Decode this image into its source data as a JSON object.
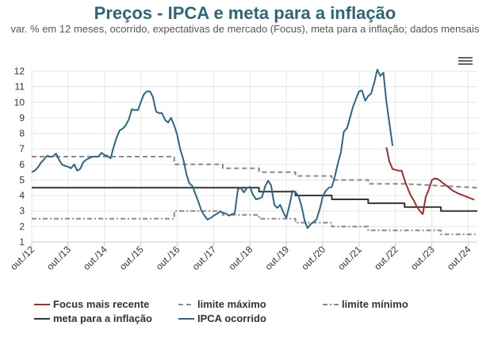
{
  "title": "Preços - IPCA e meta para a inflação",
  "subtitle": "var. % em 12 meses, ocorrido, expectativas de mercado (Focus), meta para a inflação; dados mensais",
  "menu_icon": "hamburger-menu-icon",
  "chart_data": {
    "type": "line",
    "ylim": [
      1,
      12
    ],
    "yticks": [
      "1",
      "2",
      "3",
      "4",
      "5",
      "6",
      "7",
      "8",
      "9",
      "10",
      "11",
      "12"
    ],
    "xlim": [
      2012.75,
      2025.0
    ],
    "xticks": [
      {
        "label": "out./12",
        "x": 2012.75
      },
      {
        "label": "out./13",
        "x": 2013.75
      },
      {
        "label": "out./14",
        "x": 2014.75
      },
      {
        "label": "out./15",
        "x": 2015.75
      },
      {
        "label": "out./16",
        "x": 2016.75
      },
      {
        "label": "out./17",
        "x": 2017.75
      },
      {
        "label": "out./18",
        "x": 2018.75
      },
      {
        "label": "out./19",
        "x": 2019.75
      },
      {
        "label": "out./20",
        "x": 2020.75
      },
      {
        "label": "out./21",
        "x": 2021.75
      },
      {
        "label": "out./22",
        "x": 2022.75
      },
      {
        "label": "out./23",
        "x": 2023.75
      },
      {
        "label": "out./24",
        "x": 2024.75
      }
    ],
    "grid": true,
    "legend_position": "bottom",
    "series": [
      {
        "name": "Focus mais recente",
        "color": "#a03030",
        "style": "solid",
        "points": [
          [
            2022.5,
            7.1
          ],
          [
            2022.58,
            6.2
          ],
          [
            2022.67,
            5.7
          ],
          [
            2022.75,
            5.65
          ],
          [
            2022.83,
            5.6
          ],
          [
            2022.92,
            5.6
          ],
          [
            2023.0,
            5.0
          ],
          [
            2023.08,
            4.5
          ],
          [
            2023.17,
            4.0
          ],
          [
            2023.25,
            3.7
          ],
          [
            2023.33,
            3.3
          ],
          [
            2023.42,
            3.0
          ],
          [
            2023.5,
            2.8
          ],
          [
            2023.58,
            3.9
          ],
          [
            2023.67,
            4.4
          ],
          [
            2023.75,
            5.0
          ],
          [
            2023.83,
            5.1
          ],
          [
            2023.92,
            5.05
          ],
          [
            2024.0,
            4.9
          ],
          [
            2024.17,
            4.6
          ],
          [
            2024.33,
            4.3
          ],
          [
            2024.5,
            4.1
          ],
          [
            2024.67,
            3.95
          ],
          [
            2024.83,
            3.8
          ],
          [
            2024.92,
            3.72
          ]
        ]
      },
      {
        "name": "limite máximo",
        "color": "#888888",
        "style": "dashed",
        "points": [
          [
            2012.75,
            6.5
          ],
          [
            2016.67,
            6.5
          ],
          [
            2016.67,
            6.0
          ],
          [
            2018.0,
            6.0
          ],
          [
            2018.0,
            5.75
          ],
          [
            2019.0,
            5.75
          ],
          [
            2019.0,
            5.5
          ],
          [
            2020.0,
            5.5
          ],
          [
            2020.0,
            5.25
          ],
          [
            2021.0,
            5.25
          ],
          [
            2021.0,
            5.0
          ],
          [
            2022.0,
            5.0
          ],
          [
            2022.0,
            4.75
          ],
          [
            2023.0,
            4.75
          ],
          [
            2023.0,
            4.75
          ],
          [
            2025.0,
            4.5
          ]
        ]
      },
      {
        "name": "limite mínimo",
        "color": "#888888",
        "style": "dashdot",
        "points": [
          [
            2012.75,
            2.5
          ],
          [
            2016.67,
            2.5
          ],
          [
            2016.67,
            3.0
          ],
          [
            2018.0,
            3.0
          ],
          [
            2018.0,
            2.75
          ],
          [
            2019.0,
            2.75
          ],
          [
            2019.0,
            2.5
          ],
          [
            2020.0,
            2.5
          ],
          [
            2020.0,
            2.25
          ],
          [
            2021.0,
            2.25
          ],
          [
            2021.0,
            2.0
          ],
          [
            2022.0,
            2.0
          ],
          [
            2022.0,
            1.75
          ],
          [
            2023.0,
            1.75
          ],
          [
            2023.0,
            1.75
          ],
          [
            2024.0,
            1.75
          ],
          [
            2024.0,
            1.5
          ],
          [
            2025.0,
            1.5
          ]
        ]
      },
      {
        "name": "meta para a inflação",
        "color": "#333333",
        "style": "solid",
        "points": [
          [
            2012.75,
            4.5
          ],
          [
            2019.0,
            4.5
          ],
          [
            2019.0,
            4.25
          ],
          [
            2020.0,
            4.25
          ],
          [
            2020.0,
            4.0
          ],
          [
            2021.0,
            4.0
          ],
          [
            2021.0,
            3.75
          ],
          [
            2022.0,
            3.75
          ],
          [
            2022.0,
            3.5
          ],
          [
            2023.0,
            3.5
          ],
          [
            2023.0,
            3.25
          ],
          [
            2024.0,
            3.25
          ],
          [
            2024.0,
            3.0
          ],
          [
            2025.0,
            3.0
          ]
        ]
      },
      {
        "name": "IPCA ocorrido",
        "color": "#2e6685",
        "style": "solid",
        "points": [
          [
            2012.75,
            5.5
          ],
          [
            2012.83,
            5.6
          ],
          [
            2012.92,
            5.8
          ],
          [
            2013.0,
            6.1
          ],
          [
            2013.08,
            6.3
          ],
          [
            2013.17,
            6.55
          ],
          [
            2013.25,
            6.5
          ],
          [
            2013.33,
            6.5
          ],
          [
            2013.42,
            6.7
          ],
          [
            2013.5,
            6.3
          ],
          [
            2013.58,
            6.0
          ],
          [
            2013.67,
            5.9
          ],
          [
            2013.75,
            5.85
          ],
          [
            2013.83,
            5.75
          ],
          [
            2013.92,
            6.0
          ],
          [
            2014.0,
            5.6
          ],
          [
            2014.08,
            5.7
          ],
          [
            2014.17,
            6.15
          ],
          [
            2014.25,
            6.3
          ],
          [
            2014.33,
            6.4
          ],
          [
            2014.42,
            6.5
          ],
          [
            2014.5,
            6.5
          ],
          [
            2014.58,
            6.5
          ],
          [
            2014.67,
            6.75
          ],
          [
            2014.75,
            6.6
          ],
          [
            2014.83,
            6.55
          ],
          [
            2014.92,
            6.4
          ],
          [
            2015.0,
            7.1
          ],
          [
            2015.08,
            7.7
          ],
          [
            2015.17,
            8.2
          ],
          [
            2015.25,
            8.3
          ],
          [
            2015.33,
            8.5
          ],
          [
            2015.42,
            8.9
          ],
          [
            2015.5,
            9.55
          ],
          [
            2015.58,
            9.5
          ],
          [
            2015.67,
            9.5
          ],
          [
            2015.75,
            10.0
          ],
          [
            2015.83,
            10.5
          ],
          [
            2015.92,
            10.7
          ],
          [
            2016.0,
            10.7
          ],
          [
            2016.08,
            10.35
          ],
          [
            2016.17,
            9.4
          ],
          [
            2016.25,
            9.3
          ],
          [
            2016.33,
            9.3
          ],
          [
            2016.42,
            8.85
          ],
          [
            2016.5,
            8.7
          ],
          [
            2016.58,
            9.0
          ],
          [
            2016.67,
            8.5
          ],
          [
            2016.75,
            7.9
          ],
          [
            2016.83,
            7.0
          ],
          [
            2016.92,
            6.3
          ],
          [
            2017.0,
            5.4
          ],
          [
            2017.08,
            4.8
          ],
          [
            2017.17,
            4.6
          ],
          [
            2017.25,
            4.1
          ],
          [
            2017.33,
            3.6
          ],
          [
            2017.42,
            3.0
          ],
          [
            2017.5,
            2.7
          ],
          [
            2017.58,
            2.45
          ],
          [
            2017.67,
            2.55
          ],
          [
            2017.75,
            2.7
          ],
          [
            2017.83,
            2.8
          ],
          [
            2017.92,
            2.95
          ],
          [
            2018.0,
            2.9
          ],
          [
            2018.08,
            2.85
          ],
          [
            2018.17,
            2.7
          ],
          [
            2018.25,
            2.8
          ],
          [
            2018.33,
            2.85
          ],
          [
            2018.42,
            4.4
          ],
          [
            2018.5,
            4.5
          ],
          [
            2018.58,
            4.2
          ],
          [
            2018.67,
            4.5
          ],
          [
            2018.75,
            4.55
          ],
          [
            2018.83,
            4.05
          ],
          [
            2018.92,
            3.75
          ],
          [
            2019.0,
            3.8
          ],
          [
            2019.08,
            3.9
          ],
          [
            2019.17,
            4.6
          ],
          [
            2019.25,
            4.95
          ],
          [
            2019.33,
            4.65
          ],
          [
            2019.42,
            3.4
          ],
          [
            2019.5,
            3.2
          ],
          [
            2019.58,
            3.4
          ],
          [
            2019.67,
            2.9
          ],
          [
            2019.75,
            2.55
          ],
          [
            2019.83,
            3.3
          ],
          [
            2019.92,
            4.3
          ],
          [
            2020.0,
            4.2
          ],
          [
            2020.08,
            4.0
          ],
          [
            2020.17,
            3.3
          ],
          [
            2020.25,
            2.4
          ],
          [
            2020.33,
            1.9
          ],
          [
            2020.42,
            2.15
          ],
          [
            2020.5,
            2.3
          ],
          [
            2020.58,
            2.45
          ],
          [
            2020.67,
            3.15
          ],
          [
            2020.75,
            3.9
          ],
          [
            2020.83,
            4.3
          ],
          [
            2020.92,
            4.5
          ],
          [
            2021.0,
            4.55
          ],
          [
            2021.08,
            5.2
          ],
          [
            2021.17,
            6.1
          ],
          [
            2021.25,
            6.8
          ],
          [
            2021.33,
            8.1
          ],
          [
            2021.42,
            8.35
          ],
          [
            2021.5,
            9.0
          ],
          [
            2021.58,
            9.7
          ],
          [
            2021.67,
            10.25
          ],
          [
            2021.75,
            10.7
          ],
          [
            2021.83,
            10.75
          ],
          [
            2021.92,
            10.1
          ],
          [
            2022.0,
            10.4
          ],
          [
            2022.08,
            10.55
          ],
          [
            2022.17,
            11.3
          ],
          [
            2022.25,
            12.1
          ],
          [
            2022.33,
            11.7
          ],
          [
            2022.42,
            11.9
          ],
          [
            2022.5,
            10.05
          ],
          [
            2022.58,
            8.7
          ],
          [
            2022.67,
            7.2
          ]
        ]
      }
    ]
  }
}
